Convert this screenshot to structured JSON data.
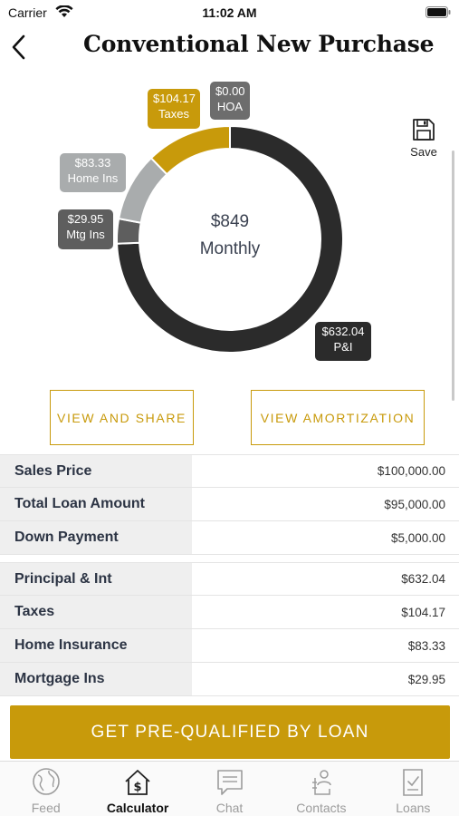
{
  "status_bar": {
    "carrier": "Carrier",
    "time": "11:02 AM"
  },
  "header": {
    "title": "Conventional New Purchase"
  },
  "chart_data": {
    "type": "pie",
    "style": "donut",
    "center_value": "$849",
    "center_label": "Monthly",
    "slices": [
      {
        "name": "P&I",
        "label": "$632.04",
        "value": 632.04,
        "color": "#2b2b2b"
      },
      {
        "name": "Mtg Ins",
        "label": "$29.95",
        "value": 29.95,
        "color": "#5e5e5e"
      },
      {
        "name": "Home Ins",
        "label": "$83.33",
        "value": 83.33,
        "color": "#a9acad"
      },
      {
        "name": "Taxes",
        "label": "$104.17",
        "value": 104.17,
        "color": "#c89a0b"
      },
      {
        "name": "HOA",
        "label": "$0.00",
        "value": 0.0,
        "color": "#6d6d6d"
      }
    ]
  },
  "save": {
    "label": "Save"
  },
  "actions": {
    "share_label": "VIEW AND SHARE",
    "amortization_label": "VIEW AMORTIZATION"
  },
  "loan_table": [
    {
      "label": "Sales Price",
      "value": "$100,000.00"
    },
    {
      "label": "Total Loan Amount",
      "value": "$95,000.00"
    },
    {
      "label": "Down Payment",
      "value": "$5,000.00"
    }
  ],
  "payment_table": [
    {
      "label": "Principal & Int",
      "value": "$632.04"
    },
    {
      "label": "Taxes",
      "value": "$104.17"
    },
    {
      "label": "Home Insurance",
      "value": "$83.33"
    },
    {
      "label": "Mortgage Ins",
      "value": "$29.95"
    }
  ],
  "prequal": {
    "label": "GET PRE-QUALIFIED BY LOAN"
  },
  "tabs": [
    {
      "label": "Feed",
      "icon": "globe-icon"
    },
    {
      "label": "Calculator",
      "icon": "calculator-house-icon",
      "active": true
    },
    {
      "label": "Chat",
      "icon": "chat-icon"
    },
    {
      "label": "Contacts",
      "icon": "contacts-icon"
    },
    {
      "label": "Loans",
      "icon": "loans-doc-icon"
    }
  ],
  "colors": {
    "accent": "#c89a0b",
    "dark": "#2b2b2b"
  }
}
